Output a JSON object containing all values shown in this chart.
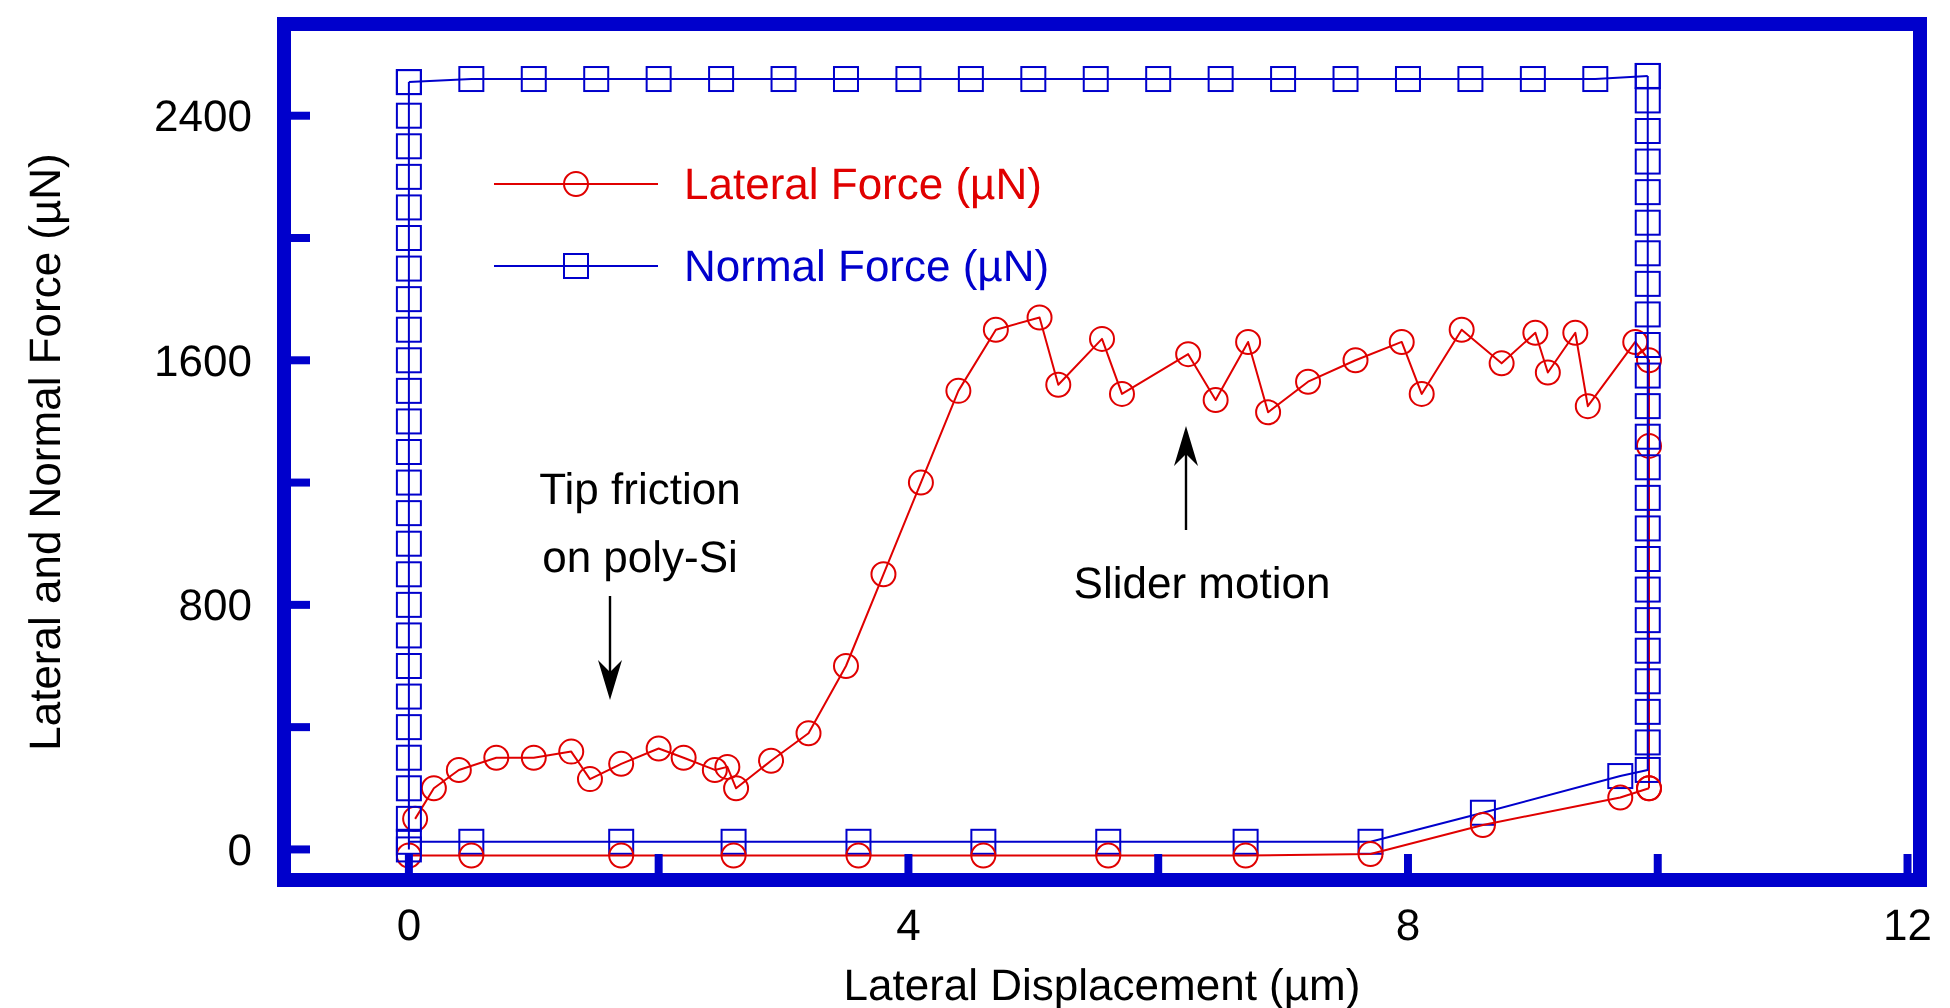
{
  "chart_data": {
    "type": "line",
    "xlabel": "Lateral Displacement (µm)",
    "ylabel": "Lateral and Normal Force (µN)",
    "xlim": [
      -1,
      12.1
    ],
    "ylim": [
      -100,
      2700
    ],
    "xticks": [
      0,
      {
        "value": 2,
        "label": null
      },
      4,
      {
        "value": 6,
        "label": null
      },
      8,
      {
        "value": 10,
        "label": null
      },
      12
    ],
    "yticks": [
      0,
      {
        "value": 400,
        "label": null
      },
      800,
      {
        "value": 1200,
        "label": null
      },
      1600,
      {
        "value": 2000,
        "label": null
      },
      2400
    ],
    "grid": false,
    "legend": "top left",
    "line_style": "solid",
    "series": [
      {
        "name": "Lateral Force (µN)",
        "color": "#e00000",
        "marker": "circle",
        "x": [
          0.05,
          0.2,
          0.4,
          0.7,
          1.0,
          1.3,
          1.45,
          1.7,
          2.0,
          2.2,
          2.45,
          2.55,
          2.62,
          2.9,
          3.2,
          3.5,
          3.8,
          4.1,
          4.4,
          4.7,
          5.05,
          5.2,
          5.55,
          5.71,
          6.24,
          6.46,
          6.72,
          6.88,
          7.2,
          7.58,
          7.95,
          8.11,
          8.43,
          8.75,
          9.02,
          9.12,
          9.34,
          9.44,
          9.82,
          9.93,
          9.93,
          9.93
        ],
        "values": [
          100,
          200,
          260,
          300,
          300,
          320,
          230,
          280,
          330,
          300,
          260,
          270,
          200,
          290,
          380,
          600,
          900,
          1200,
          1500,
          1700,
          1740,
          1520,
          1670,
          1490,
          1620,
          1470,
          1660,
          1430,
          1530,
          1600,
          1660,
          1490,
          1700,
          1590,
          1690,
          1560,
          1690,
          1450,
          1660,
          1600,
          1320,
          200
        ]
      },
      {
        "name": "Normal Force (µN)",
        "color": "#0000cc",
        "marker": "square",
        "x": [
          0,
          0.5,
          1.7,
          2.6,
          3.6,
          4.6,
          5.6,
          6.7,
          7.7,
          8.6,
          9.7,
          9.92,
          9.92,
          9.92,
          9.92,
          9.92,
          9.92,
          9.92,
          9.92,
          9.92,
          9.92,
          9.92,
          9.92,
          9.92,
          9.92,
          9.92,
          9.92,
          9.92,
          9.92,
          9.92,
          9.92,
          9.92,
          9.92,
          9.92,
          9.92
        ],
        "values": [
          25,
          25,
          25,
          25,
          25,
          25,
          25,
          25,
          25,
          120,
          240,
          260,
          350,
          450,
          550,
          650,
          750,
          850,
          950,
          1050,
          1150,
          1250,
          1350,
          1450,
          1550,
          1650,
          1750,
          1850,
          1950,
          2050,
          2150,
          2250,
          2350,
          2450,
          2530
        ]
      },
      {
        "color": "#e00000",
        "marker": "circle",
        "x": [
          0,
          0.5,
          1.7,
          2.6,
          3.6,
          4.6,
          5.6,
          6.7,
          7.7,
          8.6,
          9.7,
          9.93
        ],
        "values": [
          -20,
          -20,
          -20,
          -20,
          -20,
          -20,
          -20,
          -20,
          -15,
          80,
          170,
          200
        ]
      },
      {
        "color": "#0000cc",
        "marker": "square",
        "x": [
          0,
          0.5,
          1,
          1.5,
          2,
          2.5,
          3,
          3.5,
          4,
          4.5,
          5,
          5.5,
          6,
          6.5,
          7,
          7.5,
          8,
          8.5,
          9,
          9.5,
          9.92
        ],
        "values": [
          2510,
          2520,
          2520,
          2520,
          2520,
          2520,
          2520,
          2520,
          2520,
          2520,
          2520,
          2520,
          2520,
          2520,
          2520,
          2520,
          2520,
          2520,
          2520,
          2520,
          2530
        ]
      },
      {
        "color": "#0000cc",
        "marker": "square",
        "x": [
          0,
          0,
          0,
          0,
          0,
          0,
          0,
          0,
          0,
          0,
          0,
          0,
          0,
          0,
          0,
          0,
          0,
          0,
          0,
          0,
          0,
          0,
          0,
          0,
          0,
          0
        ],
        "values": [
          0,
          100,
          200,
          300,
          400,
          500,
          600,
          700,
          800,
          900,
          1000,
          1100,
          1200,
          1300,
          1400,
          1500,
          1600,
          1700,
          1800,
          1900,
          2000,
          2100,
          2200,
          2300,
          2400,
          2510
        ]
      }
    ],
    "annotations": [
      "Tip friction\non poly-Si",
      "Slider motion"
    ]
  }
}
